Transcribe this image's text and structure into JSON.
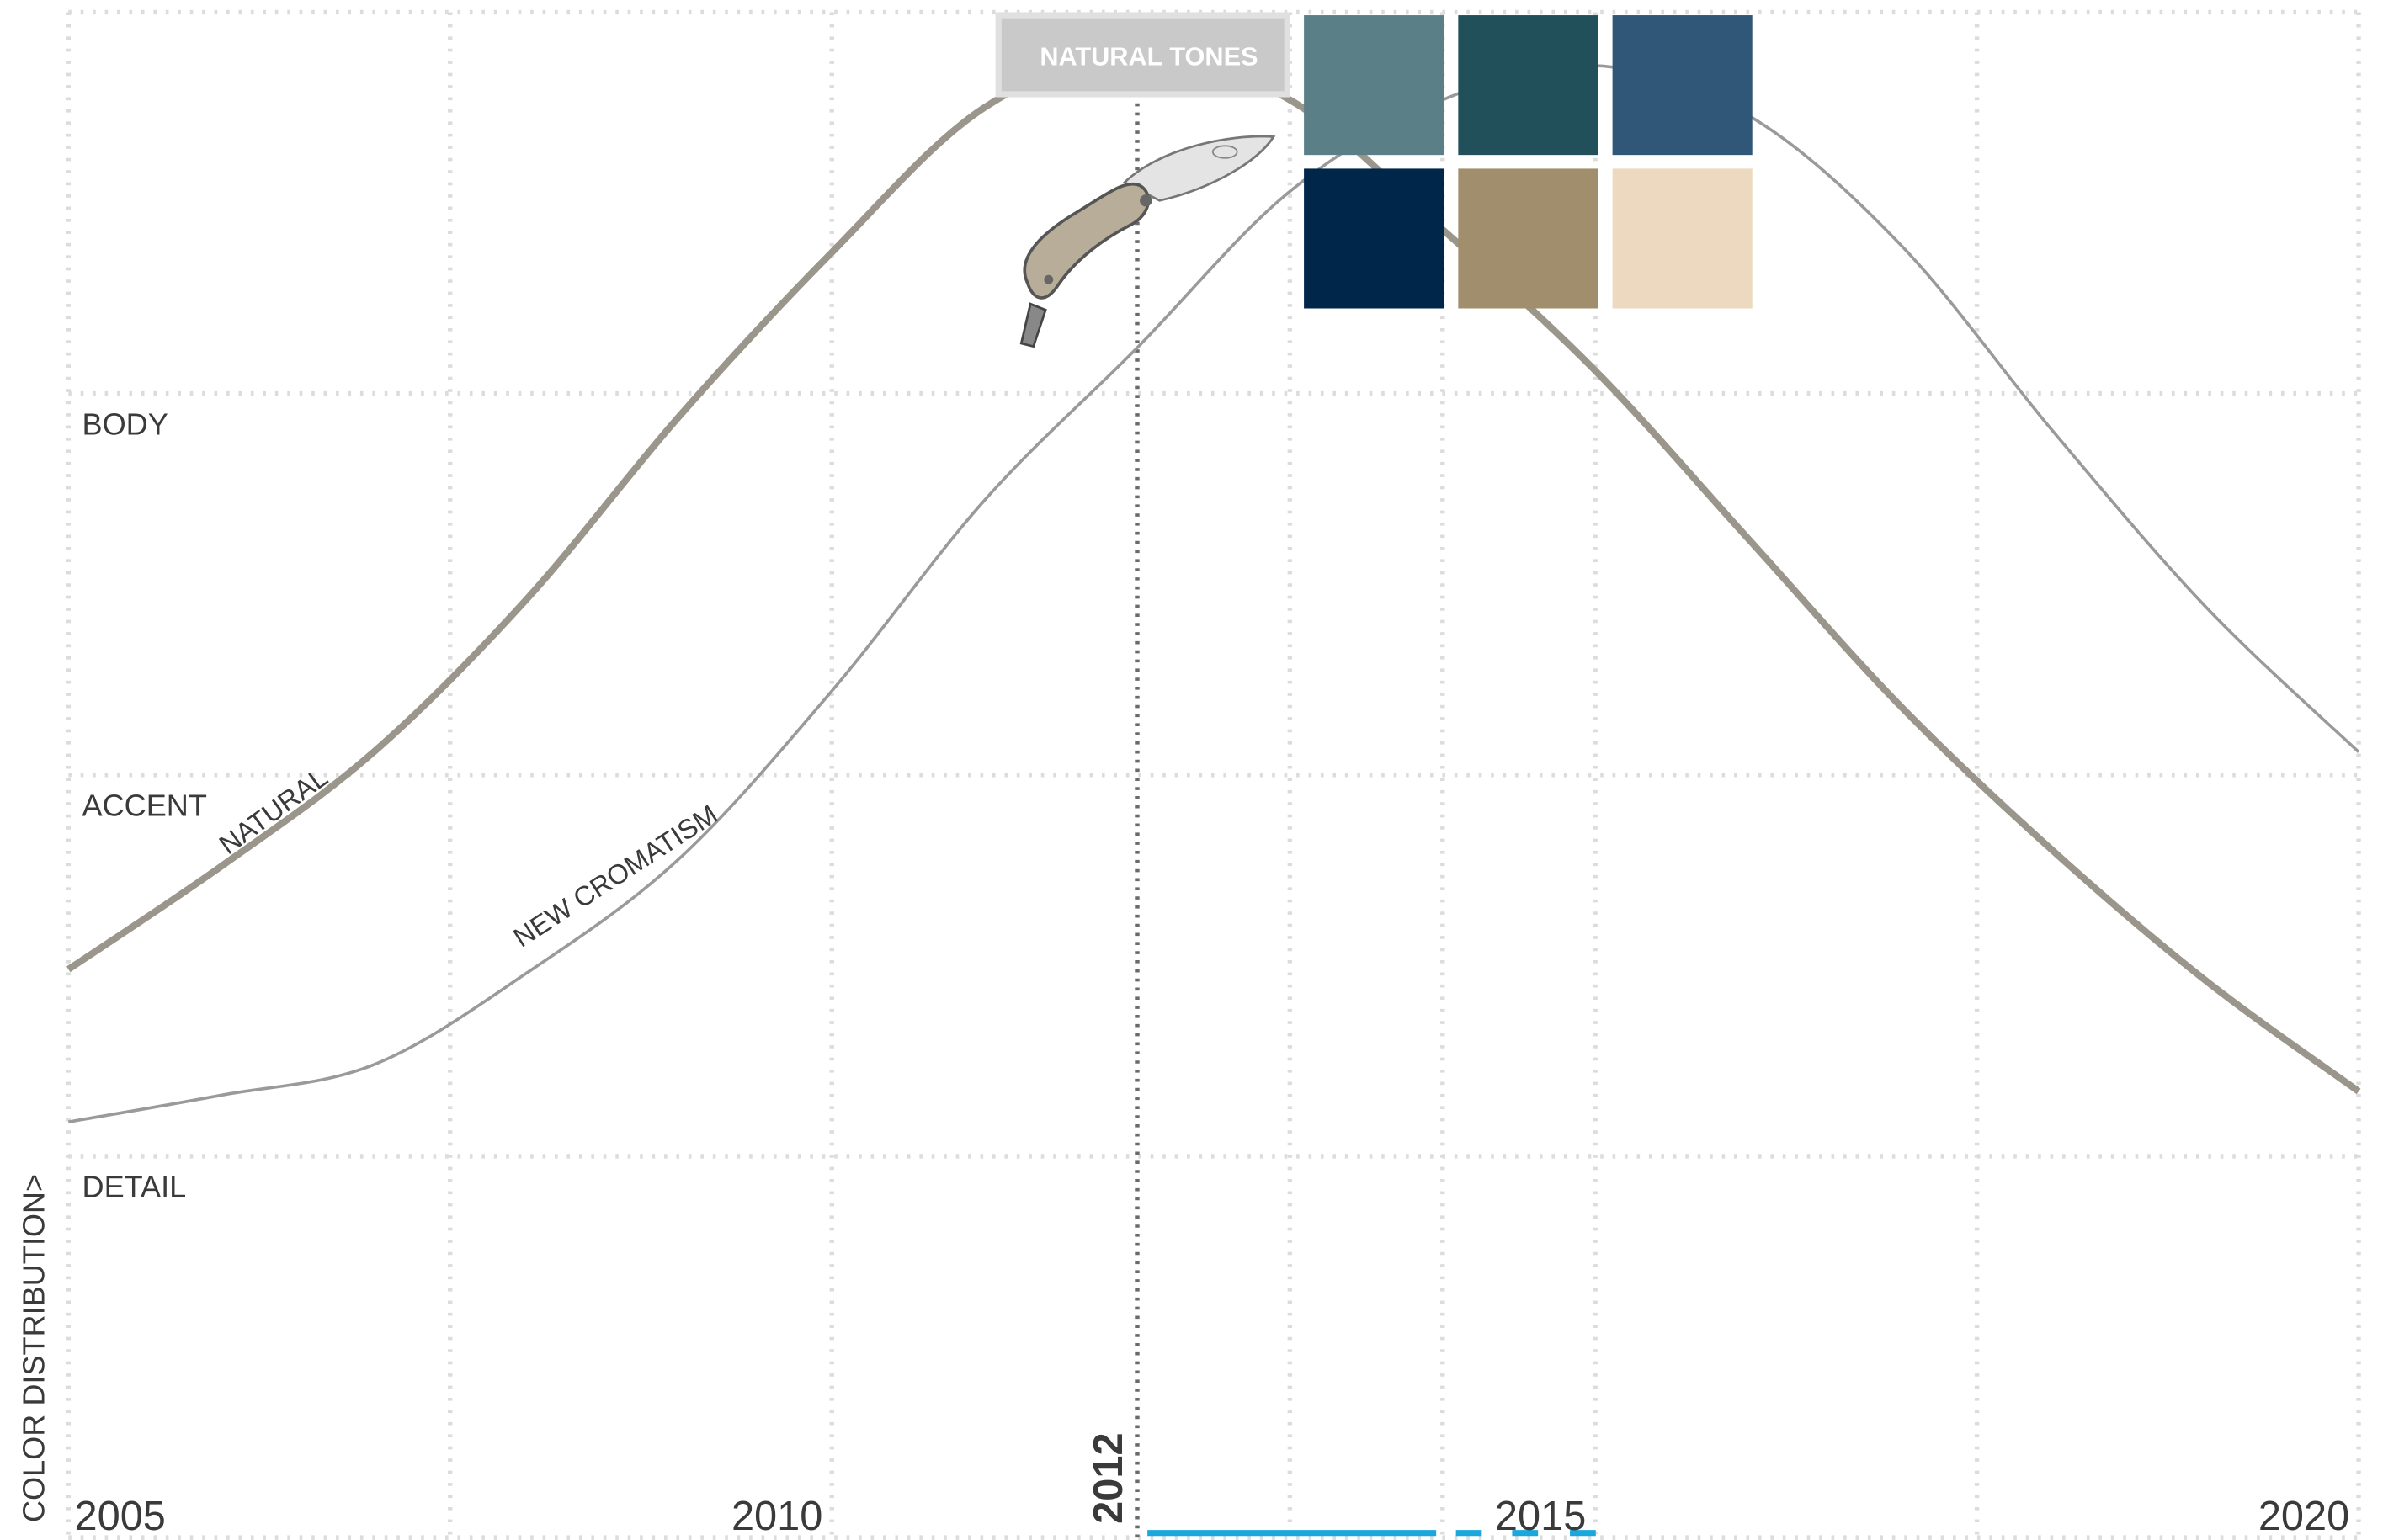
{
  "chart_data": {
    "type": "line",
    "x": [
      2005,
      2006,
      2007,
      2008,
      2009,
      2010,
      2011,
      2012,
      2013,
      2014,
      2015,
      2016,
      2017,
      2018,
      2019,
      2020
    ],
    "series": [
      {
        "name": "NATURAL",
        "color": "#9b968b",
        "values": [
          1.49,
          1.76,
          2.06,
          2.46,
          2.94,
          3.37,
          3.75,
          3.89,
          3.77,
          3.43,
          3.06,
          2.62,
          2.18,
          1.8,
          1.46,
          1.17
        ]
      },
      {
        "name": "NEW CROMATISM",
        "color": "#9a9a9a",
        "values": [
          1.09,
          1.16,
          1.24,
          1.48,
          1.78,
          2.22,
          2.72,
          3.12,
          3.53,
          3.77,
          3.86,
          3.73,
          3.39,
          2.9,
          2.44,
          2.06
        ]
      }
    ],
    "xlim": [
      2005,
      2020
    ],
    "xticks": [
      2005,
      2010,
      2015,
      2020
    ],
    "xgrid": [
      2005,
      2007.5,
      2010,
      2013,
      2014,
      2015,
      2017.5,
      2020
    ],
    "ylim": [
      0,
      4
    ],
    "yticks": [
      {
        "value": 3,
        "label": "BODY"
      },
      {
        "value": 2,
        "label": "ACCENT"
      },
      {
        "value": 1,
        "label": "DETAIL"
      }
    ],
    "ygrid": [
      0,
      1,
      2,
      3,
      4
    ],
    "ylabel": "COLOR DISTRIBUTION>",
    "marker": 2012,
    "palette": {
      "title": "NATURAL TONES",
      "colors": [
        "#5a7f87",
        "#22505a",
        "#305678",
        "#00264a",
        "#a08e6c",
        "#edd9bf"
      ]
    },
    "grid": true
  }
}
